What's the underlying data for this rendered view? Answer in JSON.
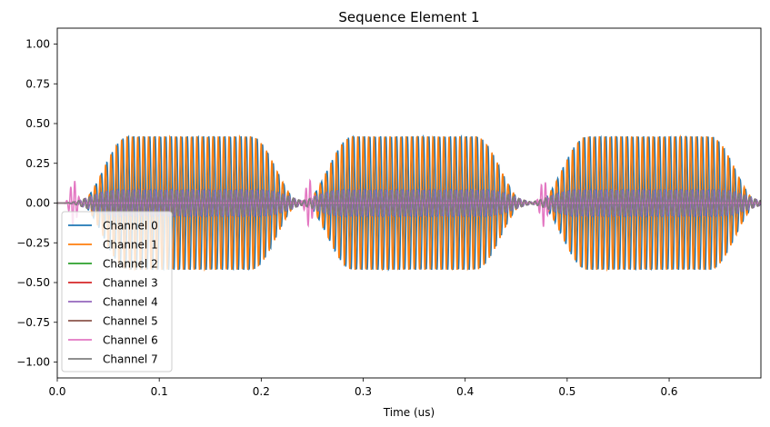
{
  "chart_data": {
    "type": "line",
    "title": "Sequence Element 1",
    "xlabel": "Time (us)",
    "ylabel": "",
    "xlim": [
      0.0,
      0.69
    ],
    "ylim": [
      -1.1,
      1.1
    ],
    "x_ticks": [
      "0.0",
      "0.1",
      "0.2",
      "0.3",
      "0.4",
      "0.5",
      "0.6"
    ],
    "y_ticks": [
      "−1.00",
      "−0.75",
      "−0.50",
      "−0.25",
      "0.00",
      "0.25",
      "0.50",
      "0.75",
      "1.00"
    ],
    "grid": false,
    "legend_location": "lower left",
    "series": [
      {
        "name": "Channel 0",
        "color": "#1f77b4",
        "kind": "main-pulse-sine",
        "amplitude": 0.42,
        "carrier_mhz": 190,
        "pulse_centers_us": [
          0.13,
          0.35,
          0.58
        ],
        "flat_top_us": 0.12,
        "rise_us": 0.05
      },
      {
        "name": "Channel 1",
        "color": "#ff7f0e",
        "kind": "main-pulse-cosine",
        "amplitude": 0.42,
        "carrier_mhz": 190,
        "pulse_centers_us": [
          0.13,
          0.35,
          0.58
        ],
        "flat_top_us": 0.12,
        "rise_us": 0.05
      },
      {
        "name": "Channel 2",
        "color": "#2ca02c",
        "kind": "small-sine",
        "amplitude": 0.08,
        "carrier_mhz": 190,
        "pulse_centers_us": [
          0.13,
          0.35,
          0.58
        ]
      },
      {
        "name": "Channel 3",
        "color": "#d62728",
        "kind": "small-cosine",
        "amplitude": 0.08,
        "carrier_mhz": 190,
        "pulse_centers_us": [
          0.13,
          0.35,
          0.58
        ]
      },
      {
        "name": "Channel 4",
        "color": "#9467bd",
        "kind": "small-sine",
        "amplitude": 0.08,
        "carrier_mhz": 190,
        "pulse_centers_us": [
          0.13,
          0.35,
          0.58
        ]
      },
      {
        "name": "Channel 5",
        "color": "#8c564b",
        "kind": "small-cosine",
        "amplitude": 0.08,
        "carrier_mhz": 190,
        "pulse_centers_us": [
          0.13,
          0.35,
          0.58
        ]
      },
      {
        "name": "Channel 6",
        "color": "#e377c2",
        "kind": "burst",
        "amplitude": 0.15,
        "carrier_mhz": 190,
        "burst_centers_us": [
          0.016,
          0.247,
          0.477
        ]
      },
      {
        "name": "Channel 7",
        "color": "#7f7f7f",
        "kind": "small-cosine",
        "amplitude": 0.08,
        "carrier_mhz": 190,
        "pulse_centers_us": [
          0.13,
          0.35,
          0.58
        ]
      }
    ]
  }
}
